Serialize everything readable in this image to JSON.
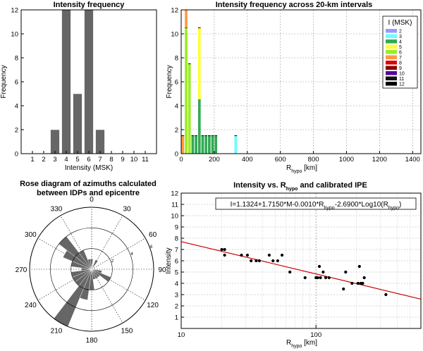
{
  "chart_data": [
    {
      "id": "hist",
      "type": "bar",
      "title": "Intensity frequency",
      "xlabel": "Intensity (MSK)",
      "ylabel": "Frequency",
      "categories": [
        1,
        2,
        3,
        4,
        5,
        6,
        7,
        8,
        9,
        10,
        11
      ],
      "values": [
        0,
        0,
        2,
        12,
        5,
        12,
        2,
        0,
        0,
        0,
        0
      ],
      "xticks": [
        "1",
        "2",
        "3",
        "4",
        "5",
        "6",
        "7",
        "8",
        "9",
        "10",
        "11"
      ],
      "yticks": [
        "0",
        "2",
        "4",
        "6",
        "8",
        "10",
        "12"
      ],
      "ylim": [
        0,
        12
      ],
      "color": "#666666"
    },
    {
      "id": "stacked",
      "type": "bar",
      "title": "Intensity frequency across 20-km intervals",
      "xlabel": "R",
      "xlabel_sub": "hypo",
      "xlabel_unit": " [km]",
      "ylabel": "Frequency",
      "xlim": [
        0,
        1450
      ],
      "ylim": [
        0,
        12
      ],
      "xticks": [
        "0",
        "200",
        "400",
        "600",
        "800",
        "1000",
        "1200",
        "1400"
      ],
      "yticks": [
        "0",
        "2",
        "4",
        "6",
        "8",
        "10",
        "12"
      ],
      "grid": true,
      "legend": {
        "title": "I (MSK)",
        "placement": "top-right",
        "labels": [
          "2",
          "3",
          "4",
          "5",
          "6",
          "7",
          "8",
          "9",
          "10",
          "11",
          "12"
        ],
        "colors": [
          "#9999ff",
          "#66ffff",
          "#33aa55",
          "#ffff33",
          "#99ee22",
          "#ff9944",
          "#dd0000",
          "#880000",
          "#550099",
          "#111111",
          "#000000"
        ]
      },
      "bins": [
        {
          "x": 10,
          "stack": [
            {
              "i": "7",
              "v": 1.5
            }
          ]
        },
        {
          "x": 30,
          "stack": [
            {
              "i": "6",
              "v": 10.5
            },
            {
              "i": "7",
              "v": 1.5
            }
          ]
        },
        {
          "x": 50,
          "stack": [
            {
              "i": "6",
              "v": 7.5
            }
          ]
        },
        {
          "x": 70,
          "stack": [
            {
              "i": "4",
              "v": 1.5
            }
          ]
        },
        {
          "x": 90,
          "stack": [
            {
              "i": "4",
              "v": 1.5
            }
          ]
        },
        {
          "x": 110,
          "stack": [
            {
              "i": "4",
              "v": 4.5
            },
            {
              "i": "5",
              "v": 6.0
            }
          ]
        },
        {
          "x": 130,
          "stack": [
            {
              "i": "4",
              "v": 1.5
            }
          ]
        },
        {
          "x": 150,
          "stack": [
            {
              "i": "4",
              "v": 1.5
            }
          ]
        },
        {
          "x": 170,
          "stack": [
            {
              "i": "4",
              "v": 1.5
            }
          ]
        },
        {
          "x": 190,
          "stack": [
            {
              "i": "4",
              "v": 1.5
            }
          ]
        },
        {
          "x": 210,
          "stack": [
            {
              "i": "4",
              "v": 1.5
            }
          ]
        },
        {
          "x": 330,
          "stack": [
            {
              "i": "3",
              "v": 1.5
            }
          ]
        }
      ]
    },
    {
      "id": "rose",
      "type": "rose",
      "title_lines": [
        "Rose diagram of azimuths calculated",
        "between  IDPs and epicentre"
      ],
      "angle_labels": [
        {
          "deg": 0,
          "text": "0"
        },
        {
          "deg": 30,
          "text": "30"
        },
        {
          "deg": 60,
          "text": "60"
        },
        {
          "deg": 90,
          "text": "90"
        },
        {
          "deg": 120,
          "text": "120"
        },
        {
          "deg": 150,
          "text": "150"
        },
        {
          "deg": 180,
          "text": "180"
        },
        {
          "deg": 210,
          "text": "210"
        },
        {
          "deg": 240,
          "text": "240"
        },
        {
          "deg": 270,
          "text": "270"
        },
        {
          "deg": 300,
          "text": "300"
        },
        {
          "deg": 330,
          "text": "330"
        }
      ],
      "rmax": 6,
      "radial_ticks": [
        "2",
        "4",
        "6"
      ],
      "sectors": [
        {
          "deg": 210,
          "r": 6
        },
        {
          "deg": 225,
          "r": 2
        },
        {
          "deg": 240,
          "r": 2
        },
        {
          "deg": 255,
          "r": 2
        },
        {
          "deg": 270,
          "r": 1
        },
        {
          "deg": 285,
          "r": 2
        },
        {
          "deg": 300,
          "r": 3
        },
        {
          "deg": 315,
          "r": 4
        },
        {
          "deg": 330,
          "r": 2
        },
        {
          "deg": 345,
          "r": 1
        },
        {
          "deg": 0,
          "r": 1
        },
        {
          "deg": 30,
          "r": 1
        },
        {
          "deg": 105,
          "r": 1
        },
        {
          "deg": 120,
          "r": 2
        },
        {
          "deg": 135,
          "r": 1
        },
        {
          "deg": 150,
          "r": 1
        },
        {
          "deg": 165,
          "r": 1
        },
        {
          "deg": 180,
          "r": 2
        },
        {
          "deg": 195,
          "r": 3
        }
      ],
      "color": "#666666"
    },
    {
      "id": "ipe",
      "type": "scatter",
      "title_parts": [
        "Intensity vs. R",
        "hypo",
        " and calibrated IPE"
      ],
      "xlabel": "R",
      "xlabel_sub": "hypo",
      "xlabel_unit": " [km]",
      "ylabel": "Intensity",
      "xscale": "log",
      "xlim": [
        10,
        600
      ],
      "ylim": [
        1,
        12
      ],
      "xticks": [
        "10",
        "100"
      ],
      "yticks": [
        "1",
        "2",
        "3",
        "4",
        "5",
        "6",
        "7",
        "8",
        "9",
        "10",
        "11",
        "12"
      ],
      "grid": true,
      "equation_parts": [
        "I=1.1324+1.7150*M-0.0010*R",
        "hypo",
        "-2.6900*Log10(R",
        "hypo",
        ")"
      ],
      "line": {
        "x": [
          10,
          600
        ],
        "y": [
          7.7,
          2.6
        ],
        "color": "#cc0000"
      },
      "points": [
        {
          "x": 20,
          "y": 7.0
        },
        {
          "x": 21,
          "y": 7.0
        },
        {
          "x": 21,
          "y": 6.5
        },
        {
          "x": 28,
          "y": 6.5
        },
        {
          "x": 31,
          "y": 6.5
        },
        {
          "x": 33,
          "y": 6.0
        },
        {
          "x": 36,
          "y": 6.0
        },
        {
          "x": 38,
          "y": 6.0
        },
        {
          "x": 45,
          "y": 6.5
        },
        {
          "x": 48,
          "y": 6.0
        },
        {
          "x": 52,
          "y": 6.0
        },
        {
          "x": 56,
          "y": 6.5
        },
        {
          "x": 64,
          "y": 5.0
        },
        {
          "x": 83,
          "y": 4.5
        },
        {
          "x": 100,
          "y": 4.5
        },
        {
          "x": 103,
          "y": 4.5
        },
        {
          "x": 106,
          "y": 5.5
        },
        {
          "x": 108,
          "y": 4.5
        },
        {
          "x": 113,
          "y": 5.0
        },
        {
          "x": 118,
          "y": 4.5
        },
        {
          "x": 125,
          "y": 4.5
        },
        {
          "x": 160,
          "y": 3.5
        },
        {
          "x": 166,
          "y": 5.0
        },
        {
          "x": 185,
          "y": 4.0
        },
        {
          "x": 205,
          "y": 4.0
        },
        {
          "x": 210,
          "y": 5.5
        },
        {
          "x": 215,
          "y": 4.0
        },
        {
          "x": 222,
          "y": 4.0
        },
        {
          "x": 228,
          "y": 4.5
        },
        {
          "x": 330,
          "y": 3.0
        }
      ]
    }
  ]
}
